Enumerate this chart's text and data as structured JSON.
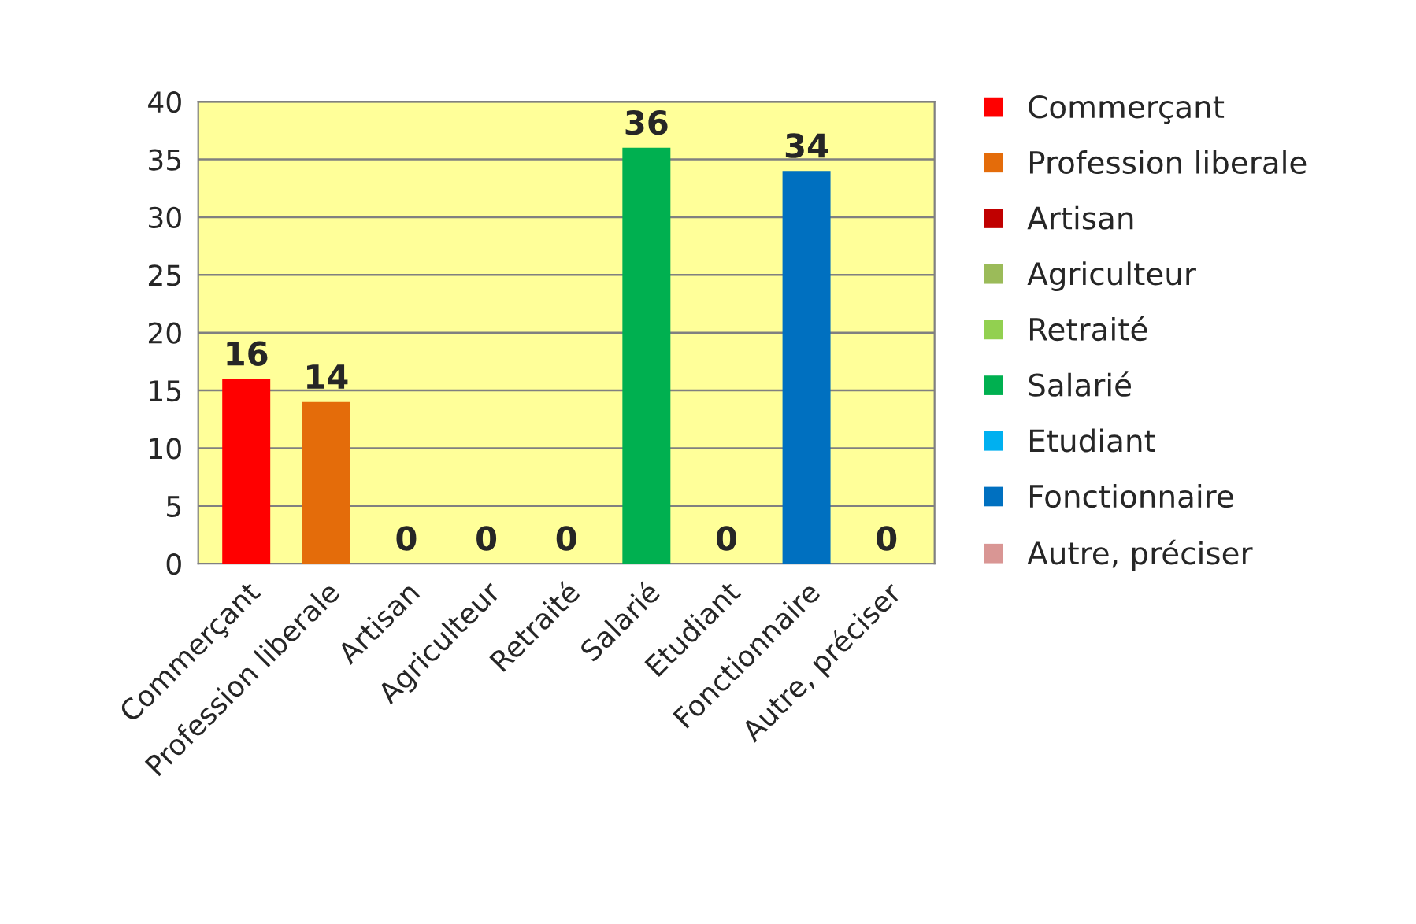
{
  "chart_data": {
    "type": "bar",
    "categories": [
      "Commerçant",
      "Profession liberale",
      "Artisan",
      "Agriculteur",
      "Retraité",
      "Salarié",
      "Etudiant",
      "Fonctionnaire",
      "Autre, préciser"
    ],
    "series": [
      {
        "name": "Commerçant",
        "color": "#ff0000",
        "values": [
          16,
          null,
          null,
          null,
          null,
          null,
          null,
          null,
          null
        ]
      },
      {
        "name": "Profession liberale",
        "color": "#e46c0a",
        "values": [
          null,
          14,
          null,
          null,
          null,
          null,
          null,
          null,
          null
        ]
      },
      {
        "name": "Artisan",
        "color": "#c00000",
        "values": [
          null,
          null,
          0,
          null,
          null,
          null,
          null,
          null,
          null
        ]
      },
      {
        "name": "Agriculteur",
        "color": "#9bbb59",
        "values": [
          null,
          null,
          null,
          0,
          null,
          null,
          null,
          null,
          null
        ]
      },
      {
        "name": "Retraité",
        "color": "#92d050",
        "values": [
          null,
          null,
          null,
          null,
          0,
          null,
          null,
          null,
          null
        ]
      },
      {
        "name": "Salarié",
        "color": "#00b050",
        "values": [
          null,
          null,
          null,
          null,
          null,
          36,
          null,
          null,
          null
        ]
      },
      {
        "name": "Etudiant",
        "color": "#00b0f0",
        "values": [
          null,
          null,
          null,
          null,
          null,
          null,
          0,
          null,
          null
        ]
      },
      {
        "name": "Fonctionnaire",
        "color": "#0070c0",
        "values": [
          null,
          null,
          null,
          null,
          null,
          null,
          null,
          34,
          null
        ]
      },
      {
        "name": "Autre, préciser",
        "color": "#d99694",
        "values": [
          null,
          null,
          null,
          null,
          null,
          null,
          null,
          null,
          0
        ]
      }
    ],
    "ylim": [
      0,
      40
    ],
    "yticks": [
      0,
      5,
      10,
      15,
      20,
      25,
      30,
      35,
      40
    ],
    "grid": "y",
    "legend": "right",
    "data_labels": true
  }
}
